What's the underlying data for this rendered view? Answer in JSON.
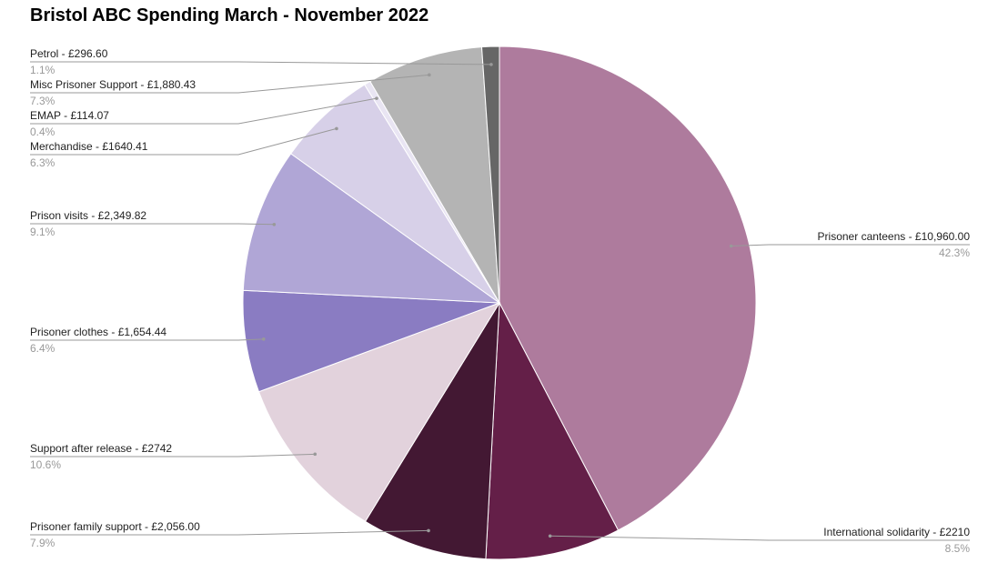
{
  "chart_data": {
    "type": "pie",
    "title": "Bristol ABC Spending March - November 2022",
    "categories": [
      "Prisoner canteens - £10,960.00",
      "International solidarity - £2210",
      "Prisoner family support - £2,056.00",
      "Support after release - £2742",
      "Prisoner clothes - £1,654.44",
      "Prison visits - £2,349.82",
      "Merchandise - £1640.41",
      "EMAP - £114.07",
      "Misc Prisoner Support - £1,880.43",
      "Petrol - £296.60"
    ],
    "values": [
      42.3,
      8.5,
      7.9,
      10.6,
      6.4,
      9.1,
      6.3,
      0.4,
      7.3,
      1.1
    ],
    "value_labels": [
      "42.3%",
      "8.5%",
      "7.9%",
      "10.6%",
      "6.4%",
      "9.1%",
      "6.3%",
      "0.4%",
      "7.3%",
      "1.1%"
    ],
    "colors": [
      "#ae7b9d",
      "#641f48",
      "#431833",
      "#e2d2dc",
      "#8a7cc2",
      "#b0a6d6",
      "#d7d0e8",
      "#e9e5f3",
      "#b4b4b4",
      "#666666"
    ]
  }
}
